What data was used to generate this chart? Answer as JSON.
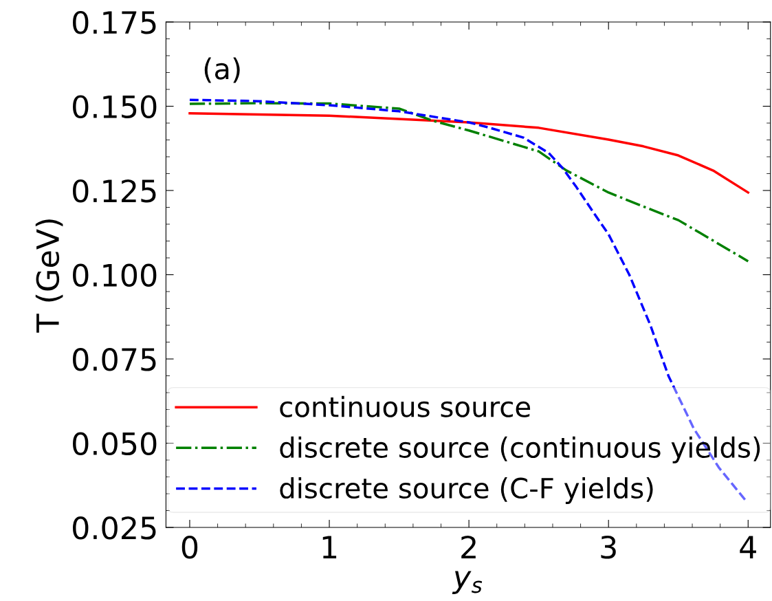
{
  "chart_data": {
    "type": "line",
    "xlabel": "y$_{s}$",
    "ylabel": "T (GeV)",
    "annotations": [
      "(a)"
    ],
    "xlim": [
      -0.17,
      4.16
    ],
    "ylim": [
      0.025,
      0.175
    ],
    "xticks": [
      0,
      1,
      2,
      3,
      4
    ],
    "yticks": [
      {
        "value": 0.025,
        "label": "0.025"
      },
      {
        "value": 0.05,
        "label": "0.050"
      },
      {
        "value": 0.075,
        "label": "0.075"
      },
      {
        "value": 0.1,
        "label": "0.100"
      },
      {
        "value": 0.125,
        "label": "0.125"
      },
      {
        "value": 0.15,
        "label": "0.150"
      },
      {
        "value": 0.175,
        "label": "0.175"
      }
    ],
    "legend": "bottom right",
    "grid": false,
    "series": [
      {
        "name": "continuous source",
        "color": "#ff0000",
        "line_style": "solid",
        "x": [
          0,
          1,
          2,
          2.5,
          3,
          3.25,
          3.5,
          3.75,
          4
        ],
        "values": [
          0.1479,
          0.1472,
          0.1452,
          0.1436,
          0.1401,
          0.1381,
          0.1354,
          0.1309,
          0.1244
        ]
      },
      {
        "name": "discrete source (continuous yields)",
        "color": "#008000",
        "line_style": "dashdot",
        "x": [
          0,
          0.5,
          1,
          1.5,
          1.75,
          2,
          2.5,
          2.7,
          3,
          3.27,
          3.5,
          4
        ],
        "values": [
          0.1507,
          0.1509,
          0.1508,
          0.1493,
          0.1456,
          0.1428,
          0.1366,
          0.1309,
          0.1244,
          0.1199,
          0.1162,
          0.104
        ]
      },
      {
        "name": "discrete source (C-F yields)",
        "color": "#0000ff",
        "line_style": "dashed",
        "x": [
          0,
          0.5,
          1,
          1.5,
          2,
          2.15,
          2.39,
          2.57,
          2.67,
          2.77,
          2.9,
          3.0,
          3.15,
          3.3,
          3.43,
          3.61,
          3.79,
          3.99
        ],
        "values": [
          0.1519,
          0.1515,
          0.1503,
          0.1485,
          0.1452,
          0.1436,
          0.1407,
          0.1362,
          0.1317,
          0.126,
          0.118,
          0.112,
          0.0999,
          0.085,
          0.0699,
          0.0544,
          0.0428,
          0.0326
        ]
      }
    ]
  }
}
